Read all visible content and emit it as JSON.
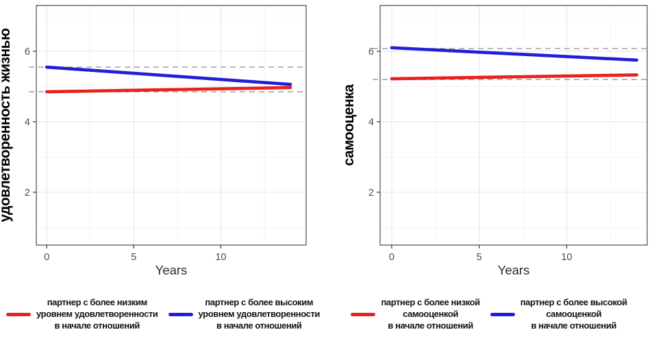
{
  "canvas": {
    "background": "#ffffff"
  },
  "colors": {
    "panel_border": "#4a4a4a",
    "grid_major": "#e8e7ef",
    "grid_minor": "#f3f2f8",
    "ref_dashed": "#a9a9a9",
    "tick_mark": "#333333",
    "tick_label": "#4d4d4d",
    "red_series": "#e8201e",
    "blue_series": "#1f1ed9"
  },
  "chart_data": [
    {
      "type": "line",
      "title": "",
      "xlabel": "Years",
      "ylabel": "удовлетворенность жизнью",
      "x_ticks": [
        0,
        5,
        10
      ],
      "x_minor_ticks": [
        2.5,
        7.5,
        12.5
      ],
      "y_ticks": [
        2,
        4,
        6
      ],
      "y_minor_ticks": [
        1,
        3,
        5,
        7
      ],
      "xlim": [
        -0.6,
        14.9
      ],
      "ylim": [
        0.5,
        7.3
      ],
      "grid": "on",
      "legend_position": "bottom",
      "ref_line_color": "#a9a9a9",
      "ref_line_style": "dashed",
      "series": [
        {
          "name": "партнер с более низким\nуровнем удовлетворенности\nв начале отношений",
          "color": "#e8201e",
          "x": [
            0,
            14
          ],
          "values": [
            4.85,
            4.97
          ],
          "ref_line_y": 4.85
        },
        {
          "name": "партнер с более высоким\nуровнем удовлетворенности\nв начале отношений",
          "color": "#1f1ed9",
          "x": [
            0,
            14
          ],
          "values": [
            5.55,
            5.06
          ],
          "ref_line_y": 5.55
        }
      ]
    },
    {
      "type": "line",
      "title": "",
      "xlabel": "Years",
      "ylabel": "самооценка",
      "x_ticks": [
        0,
        5,
        10
      ],
      "x_minor_ticks": [
        2.5,
        7.5,
        12.5
      ],
      "y_ticks": [
        2,
        4,
        6
      ],
      "y_minor_ticks": [
        1,
        3,
        5,
        7
      ],
      "xlim": [
        -0.66,
        14.6
      ],
      "ylim": [
        0.5,
        7.3
      ],
      "grid": "on",
      "legend_position": "bottom",
      "ref_line_color": "#a9a9a9",
      "ref_line_style": "dashed",
      "series": [
        {
          "name": "партнер с более низкой\nсамооценкой\nв начале отношений",
          "color": "#e8201e",
          "x": [
            0,
            14
          ],
          "values": [
            5.22,
            5.33
          ],
          "ref_line_y": 5.2
        },
        {
          "name": "партнер с более высокой\nсамооценкой\nв начале отношений",
          "color": "#1f1ed9",
          "x": [
            0,
            14
          ],
          "values": [
            6.1,
            5.75
          ],
          "ref_line_y": 6.08
        }
      ]
    }
  ]
}
